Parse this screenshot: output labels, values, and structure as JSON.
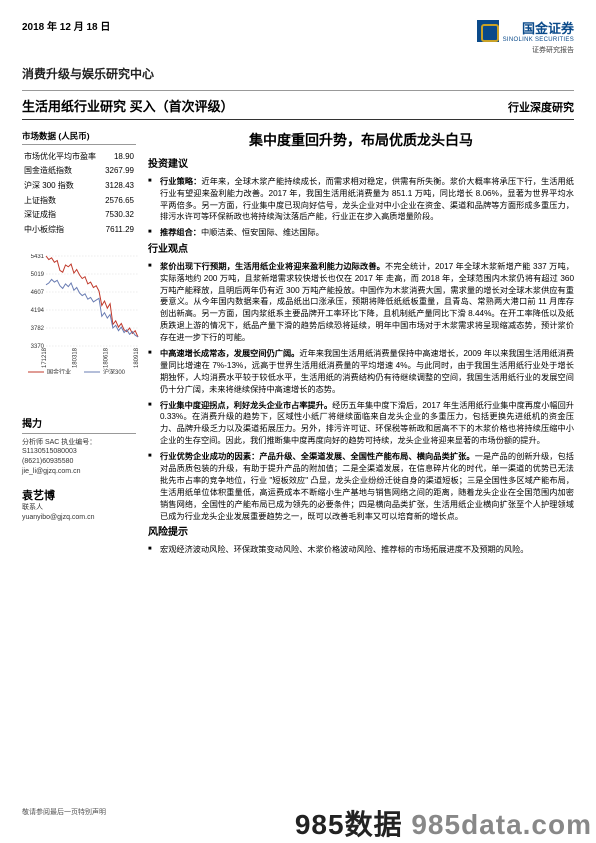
{
  "header": {
    "date": "2018 年 12 月 18 日",
    "logo_cn": "国金证券",
    "logo_en": "SINOLINK SECURITIES",
    "logo_sub": "证券研究报告",
    "dept": "消费升级与娱乐研究中心",
    "title_left": "生活用纸行业研究   买入（首次评级）",
    "title_right": "行业深度研究"
  },
  "market": {
    "title": "市场数据 (人民币)",
    "rows": [
      {
        "label": "市场优化平均市盈率",
        "value": "18.90"
      },
      {
        "label": "国金造纸指数",
        "value": "3267.99"
      },
      {
        "label": "沪深 300 指数",
        "value": "3128.43"
      },
      {
        "label": "上证指数",
        "value": "2576.65"
      },
      {
        "label": "深证成指",
        "value": "7530.32"
      },
      {
        "label": "中小板综指",
        "value": "7611.29"
      }
    ]
  },
  "chart": {
    "y_ticks": [
      "5431",
      "5019",
      "4607",
      "4194",
      "3782",
      "3370"
    ],
    "x_ticks": [
      "171218",
      "180318",
      "180618",
      "180918"
    ],
    "legend1": "国金行业",
    "legend2": "沪深300",
    "line1_color": "#c0392b",
    "line2_color": "#6a7db3",
    "grid_color": "#d9d9d9",
    "line1": [
      0,
      0.04,
      0.02,
      0.07,
      0.05,
      0.16,
      0.18,
      0.1,
      0.12,
      0.09,
      0.19,
      0.15,
      0.21,
      0.25,
      0.23,
      0.31,
      0.29,
      0.35,
      0.33,
      0.39,
      0.55,
      0.5,
      0.58,
      0.53,
      0.76,
      0.72,
      0.79,
      0.75,
      0.82,
      0.84,
      0.8,
      0.86,
      0.83,
      0.9
    ],
    "line2": [
      0.32,
      0.3,
      0.26,
      0.29,
      0.27,
      0.33,
      0.36,
      0.31,
      0.34,
      0.3,
      0.38,
      0.35,
      0.41,
      0.44,
      0.42,
      0.48,
      0.46,
      0.51,
      0.49,
      0.47,
      0.67,
      0.63,
      0.69,
      0.65,
      0.8,
      0.77,
      0.83,
      0.79,
      0.85,
      0.82,
      0.87,
      0.84,
      0.88,
      0.9
    ]
  },
  "reveal": {
    "title": "揭力",
    "line1": "分析师 SAC 执业编号：S1130515080003",
    "line2": "(8621)60935580",
    "line3": "jie_li@gjzq.com.cn",
    "author": "袁艺博",
    "line4": "联系人",
    "line5": "yuanyibo@gjzq.com.cn"
  },
  "main": {
    "headline": "集中度重回升势，布局优质龙头白马",
    "sec1_title": "投资建议",
    "sec1_items": [
      {
        "bold": "行业策略：",
        "text": "近年来，全球木浆产能持续成长，而需求相对稳定，供需有所失衡。浆价大概率将承压下行，生活用纸行业有望迎来盈利能力改善。2017 年，我国生活用纸消费量为 851.1 万吨，同比增长 8.06%，显著为世界平均水平两倍多。另一方面，行业集中度已现向好信号，龙头企业对中小企业在资金、渠道和品牌等方面形成多重压力，排污水许可等环保新政也将持续淘汰落后产能，行业正在步入高质增量阶段。"
      },
      {
        "bold": "推荐组合：",
        "text": "中顺洁柔、恒安国际、维达国际。"
      }
    ],
    "sec2_title": "行业观点",
    "sec2_items": [
      {
        "bold": "浆价出现下行预期，生活用纸企业将迎来盈利能力边际改善。",
        "text": "不完全统计，2017 年全球木浆新增产能 337 万吨，实际落地约 200 万吨，且浆新增需求较快增长也仅在 2017 年 走高，而 2018 年，全球范围内木浆仍将有超过 360 万吨产能释放，且明后两年仍有近 300 万吨产能投放。中国作为木浆消费大国，需求量的增长对全球木浆供应有重要意义。从今年国内数据来看，成品纸出口涨承压，预期将降低纸纸板重量，且青岛、常熟两大港口前 11 月库存创出新高。另一方面，国内浆纸系主要品牌开工率环比下降，且机制纸产量同比下滑 8.44%。在开工率降低以及纸质跌退上游的情况下，纸品产量下滑的趋势后续恐将延续，明年中国市场对于木浆需求将呈现缩减态势，预计浆价存在进一步下行的可能。"
      },
      {
        "bold": "中高速增长成常态，发展空间仍广阔。",
        "text": "近年来我国生活用纸消费量保持中高速增长，2009 年以来我国生活用纸消费量同比增速在 7%-13%，远高于世界生活用纸消费量的平均增速 4%。与此同时，由于我国生活用纸行业处于增长期独怀，人均消费水平较于较低水平，生活用纸的消费结构仍有待继续调整的空间，我国生活用纸行业的发展空间仍十分广阔，未来将继续保持中高速增长的态势。"
      },
      {
        "bold": "行业集中度迎拐点，利好龙头企业市占率提升。",
        "text": "经历五年集中度下滑后，2017 年生活用纸行业集中度再度小幅回升 0.33%。在消费升级的趋势下，区域性小纸厂将继续面临来自龙头企业的多重压力，包括更换先进纸机的资金压力、品牌升级乏力以及渠道拓展压力。另外，排污许可证、环保税等新政和居高不下的木浆价格也将持续压缩中小企业的生存空间。因此，我们推断集中度再度向好的趋势可持续，龙头企业将迎来显著的市场份额的提升。"
      },
      {
        "bold": "行业优势企业成功的因素：产品升级、全渠道发展、全国性产能布局、横向品类扩张。",
        "text": "一是产品的创新升级，包括对品质质包装的升级，有助于提升产品的附加值；二是全渠道发展，在信息碎片化的时代，单一渠道的优势已无法批先市占率的竞争地位，行业 \"短板效应\" 凸显，龙头企业纷纷迁徙自身的渠道短板；三是全国性多区域产能布局，生活用纸单位体积重量低，高运费成本不断缩小生产基地与销售网络之间的距离，随着龙头企业在全国范围内加密销售网络，全国性的产能布局已成为领先的必要条件；四是横向品类扩张，生活用纸企业横向扩张至个人护理领域已成为行业龙头企业发展重要趋势之一，既可以改善毛利率又可以培育新的增长点。"
      }
    ],
    "sec3_title": "风险提示",
    "sec3_items": [
      {
        "bold": "",
        "text": "宏观经济波动风险、环保政策变动风险、木浆价格波动风险、推荐标的市场拓展进度不及预期的风险。"
      }
    ]
  },
  "footer": "敬请参阅最后一页特别声明",
  "watermark_a": "985数据",
  "watermark_b": " 985data.com"
}
